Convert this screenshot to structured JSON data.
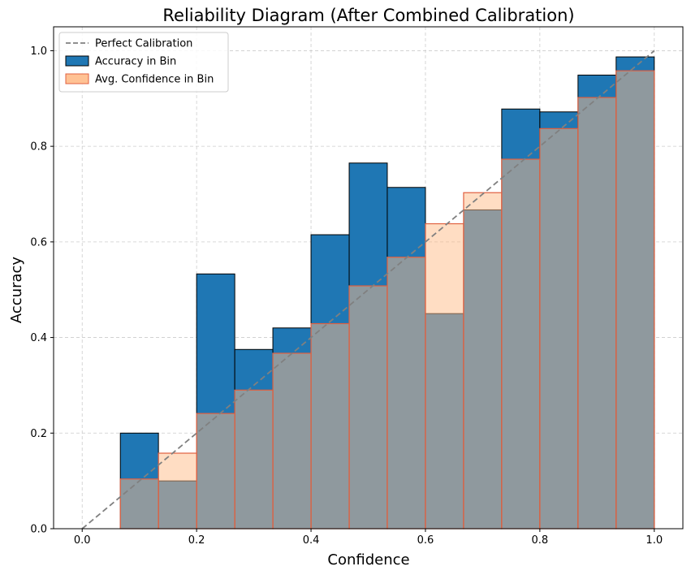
{
  "chart_data": {
    "type": "bar",
    "title": "Reliability Diagram (After Combined Calibration)",
    "xlabel": "Confidence",
    "ylabel": "Accuracy",
    "xlim": [
      -0.05,
      1.05
    ],
    "ylim": [
      0,
      1.05
    ],
    "xticks": [
      "0.0",
      "0.2",
      "0.4",
      "0.6",
      "0.8",
      "1.0"
    ],
    "yticks": [
      "0.0",
      "0.2",
      "0.4",
      "0.6",
      "0.8",
      "1.0"
    ],
    "grid": true,
    "legend_position": "top-left",
    "bin_edges": [
      0.0,
      0.0667,
      0.1333,
      0.2,
      0.2667,
      0.3333,
      0.4,
      0.4667,
      0.5333,
      0.6,
      0.6667,
      0.7333,
      0.8,
      0.8667,
      0.9333,
      1.0
    ],
    "series": [
      {
        "name": "Accuracy in Bin",
        "color": "#1f77b4",
        "edge_color": "#000000",
        "values": [
          0.0,
          0.2,
          0.1,
          0.533,
          0.375,
          0.42,
          0.615,
          0.765,
          0.714,
          0.45,
          0.667,
          0.878,
          0.872,
          0.949,
          0.987
        ]
      },
      {
        "name": "Avg. Confidence in Bin",
        "color": "#ffbb88",
        "edge_color": "#e06040",
        "values": [
          0.0,
          0.104,
          0.158,
          0.241,
          0.29,
          0.367,
          0.429,
          0.508,
          0.568,
          0.638,
          0.703,
          0.773,
          0.837,
          0.902,
          0.958
        ]
      }
    ],
    "reference_line": {
      "name": "Perfect Calibration",
      "color": "#808080",
      "points": [
        [
          0,
          0
        ],
        [
          1,
          1
        ]
      ]
    }
  }
}
